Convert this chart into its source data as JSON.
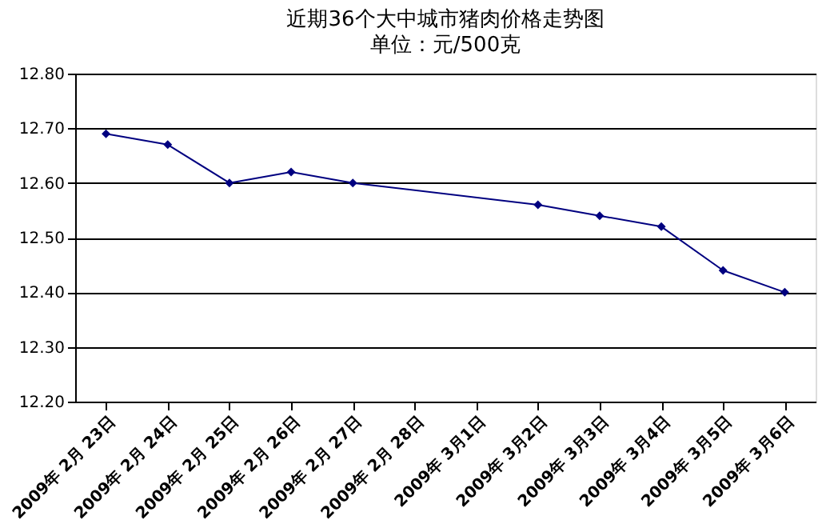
{
  "chart_data": {
    "type": "line",
    "title": "近期36个大中城市猪肉价格走势图",
    "subtitle": "单位：元/500克",
    "categories": [
      "2009年 2月 23日",
      "2009年 2月 24日",
      "2009年 2月 25日",
      "2009年 2月 26日",
      "2009年 2月 27日",
      "2009年 2月 28日",
      "2009年 3月1日",
      "2009年 3月2日",
      "2009年 3月3日",
      "2009年 3月4日",
      "2009年 3月5日",
      "2009年 3月6日"
    ],
    "series": [
      {
        "color": "#000080",
        "values": [
          12.69,
          12.67,
          12.6,
          12.62,
          12.6,
          null,
          null,
          12.56,
          12.54,
          12.52,
          12.44,
          12.4
        ]
      }
    ],
    "ylim": [
      12.2,
      12.8
    ],
    "yticks": [
      {
        "value": 12.2,
        "label": "12.20"
      },
      {
        "value": 12.3,
        "label": "12.30"
      },
      {
        "value": 12.4,
        "label": "12.40"
      },
      {
        "value": 12.5,
        "label": "12.50"
      },
      {
        "value": 12.6,
        "label": "12.60"
      },
      {
        "value": 12.7,
        "label": "12.70"
      },
      {
        "value": 12.8,
        "label": "12.80"
      }
    ],
    "grid": "y",
    "marker": "diamond",
    "line_style": "solid"
  }
}
